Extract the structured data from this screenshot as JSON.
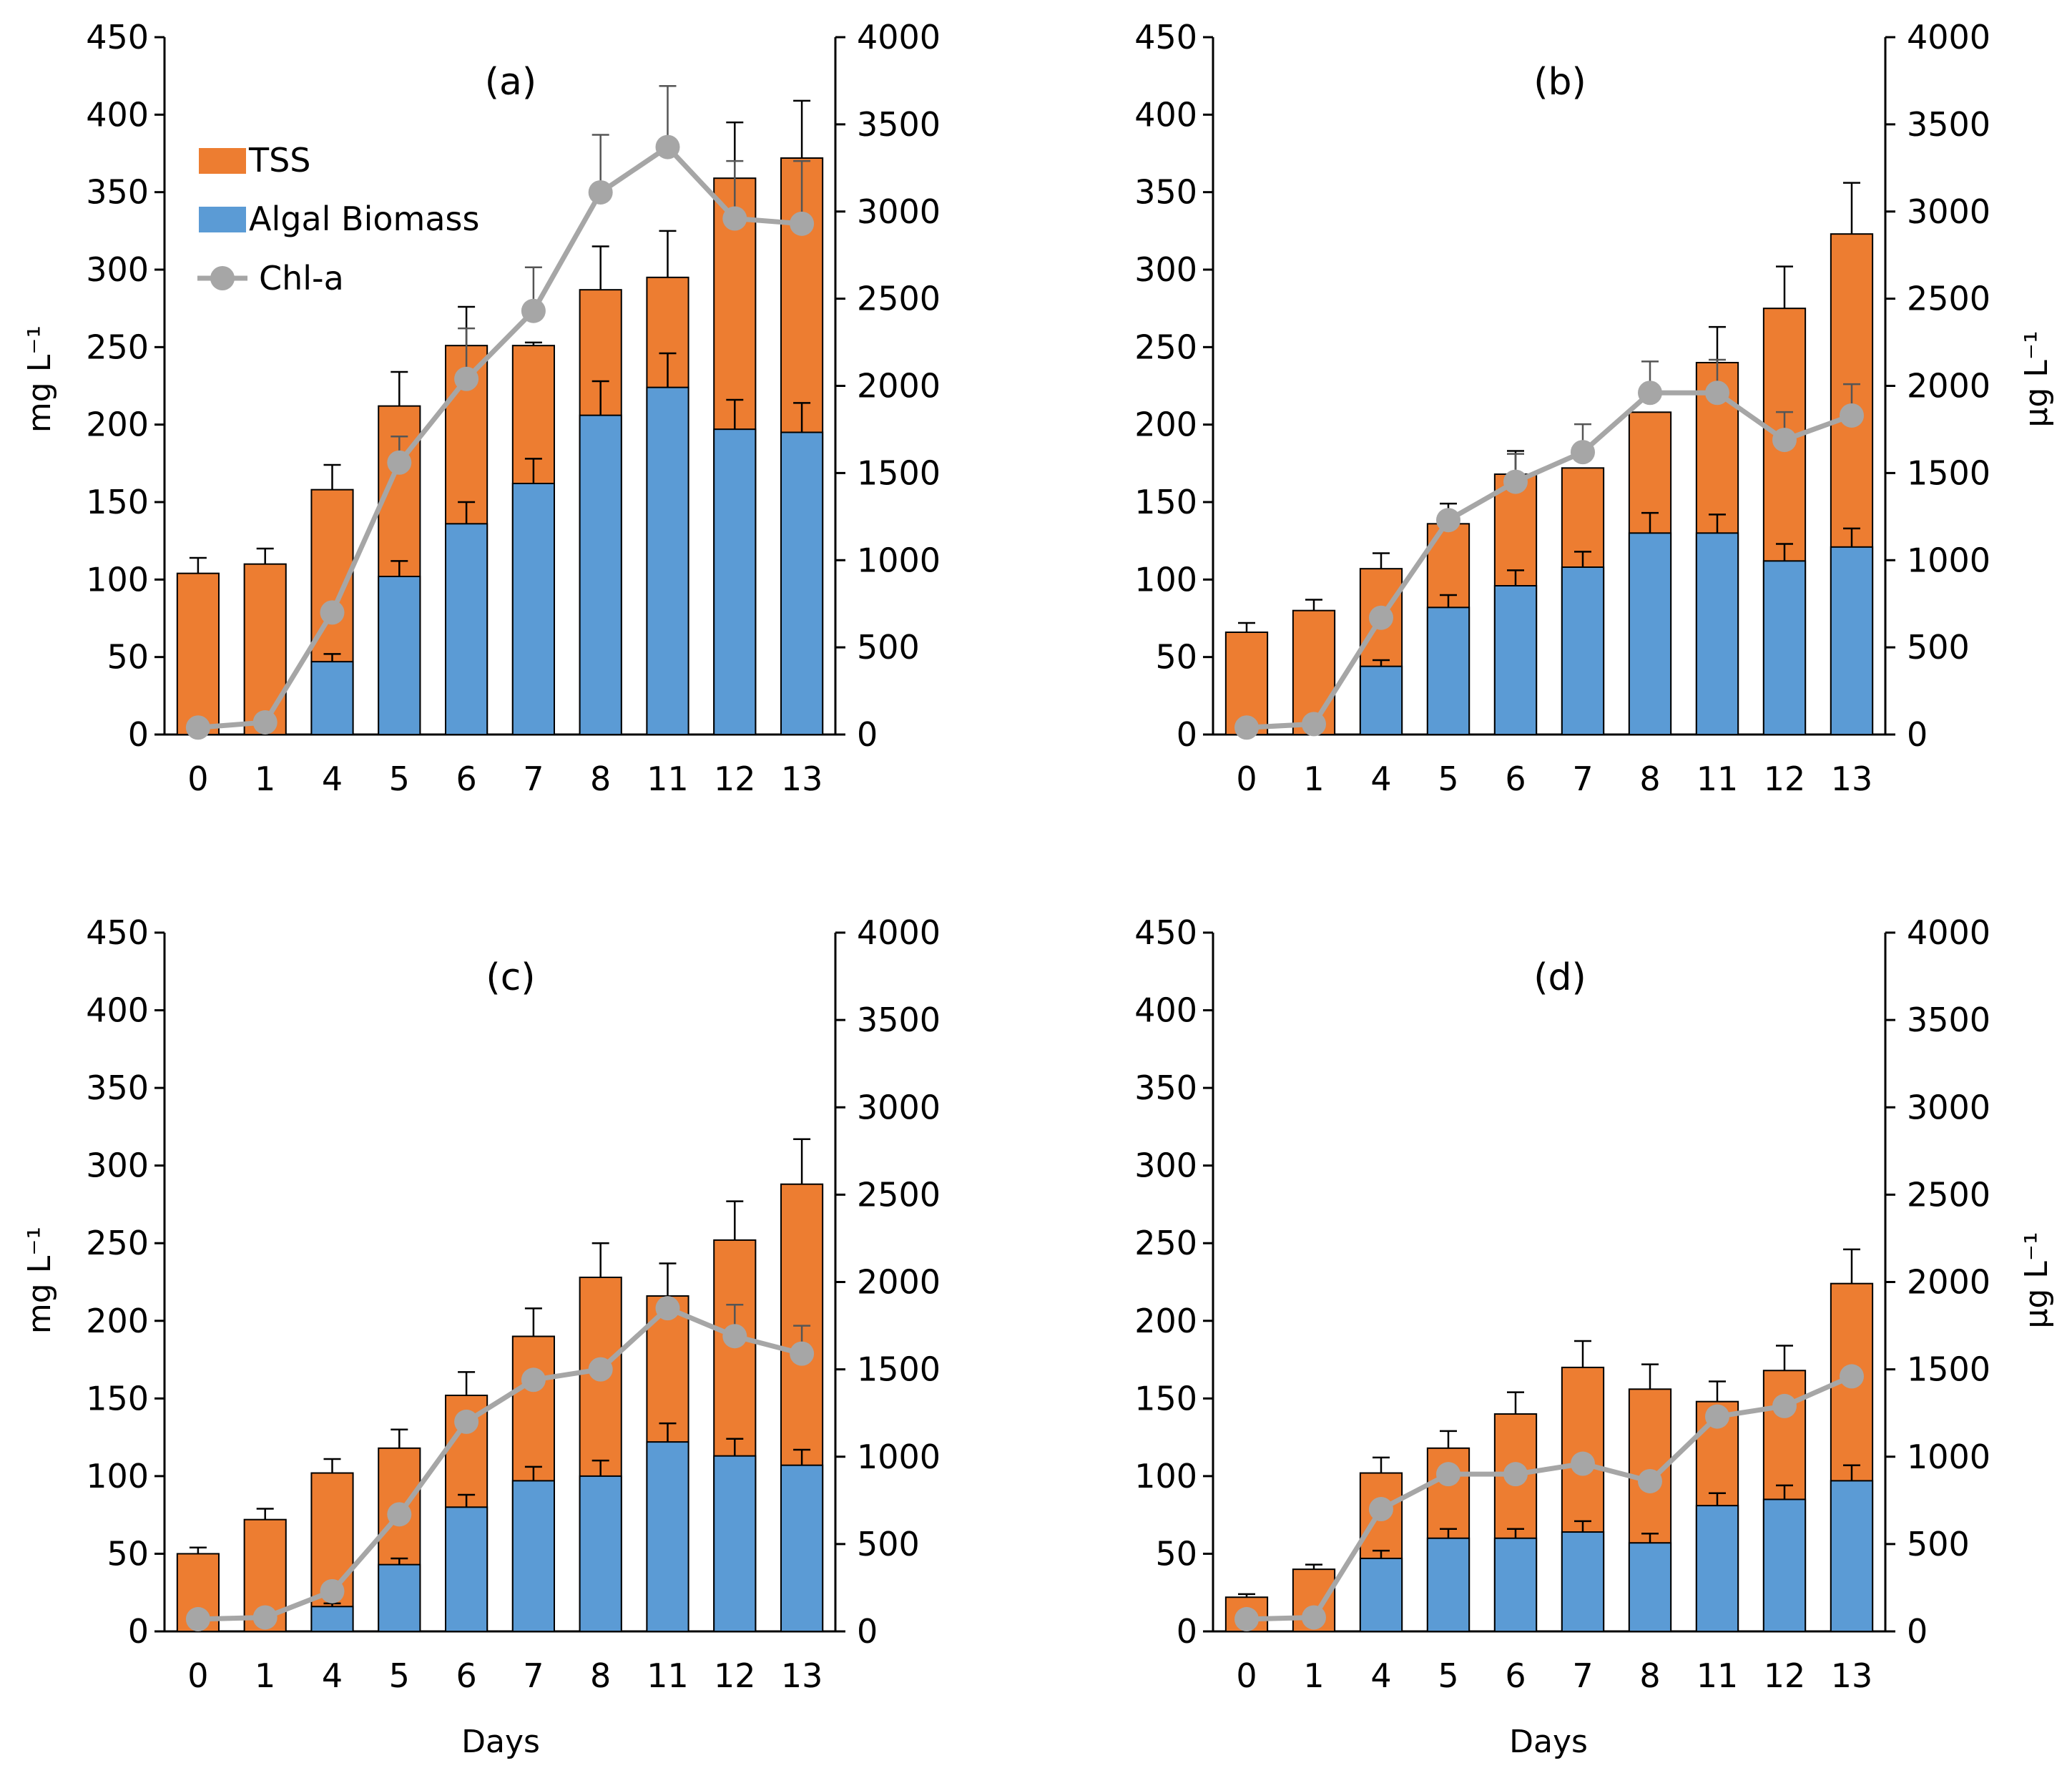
{
  "figure": {
    "y_left_label": "mg L⁻¹",
    "y_right_label": "µg L⁻¹",
    "x_label": "Days"
  },
  "colors": {
    "tss": "#ED7D31",
    "algal": "#5B9BD5",
    "chla": "#A6A6A6",
    "axis": "#000000"
  },
  "legend": {
    "tss": "TSS",
    "algal": "Algal Biomass",
    "chla": "Chl-a"
  },
  "chart_data": [
    {
      "type": "bar",
      "title": "(a)",
      "categories": [
        "0",
        "1",
        "4",
        "5",
        "6",
        "7",
        "8",
        "11",
        "12",
        "13"
      ],
      "ylim": [
        0,
        450
      ],
      "yticks": [
        0,
        50,
        100,
        150,
        200,
        250,
        300,
        350,
        400,
        450
      ],
      "y2lim": [
        0,
        4000
      ],
      "y2ticks": [
        0,
        500,
        1000,
        1500,
        2000,
        2500,
        3000,
        3500,
        4000
      ],
      "series": [
        {
          "name": "TSS",
          "values": [
            104,
            110,
            158,
            212,
            251,
            251,
            287,
            295,
            359,
            372
          ],
          "error": [
            10,
            10,
            16,
            22,
            25,
            2,
            28,
            30,
            36,
            37
          ]
        },
        {
          "name": "Algal Biomass",
          "values": [
            0,
            0,
            47,
            102,
            136,
            162,
            206,
            224,
            197,
            195
          ],
          "error": [
            0,
            0,
            5,
            10,
            14,
            16,
            22,
            22,
            19,
            19
          ]
        },
        {
          "name": "Chl-a",
          "axis": "right",
          "values": [
            40,
            70,
            700,
            1560,
            2040,
            2430,
            3110,
            3370,
            2960,
            2930
          ],
          "error": [
            0,
            0,
            0,
            150,
            290,
            250,
            330,
            350,
            330,
            360
          ]
        }
      ]
    },
    {
      "type": "bar",
      "title": "(b)",
      "categories": [
        "0",
        "1",
        "4",
        "5",
        "6",
        "7",
        "8",
        "11",
        "12",
        "13"
      ],
      "ylim": [
        0,
        450
      ],
      "yticks": [
        0,
        50,
        100,
        150,
        200,
        250,
        300,
        350,
        400,
        450
      ],
      "y2lim": [
        0,
        4000
      ],
      "y2ticks": [
        0,
        500,
        1000,
        1500,
        2000,
        2500,
        3000,
        3500,
        4000
      ],
      "series": [
        {
          "name": "TSS",
          "values": [
            66,
            80,
            107,
            136,
            168,
            172,
            208,
            240,
            275,
            323
          ],
          "error": [
            6,
            7,
            10,
            13,
            15,
            0,
            0,
            23,
            27,
            33
          ]
        },
        {
          "name": "Algal Biomass",
          "values": [
            0,
            0,
            44,
            82,
            96,
            108,
            130,
            130,
            112,
            121
          ],
          "error": [
            0,
            0,
            4,
            8,
            10,
            10,
            13,
            12,
            11,
            12
          ]
        },
        {
          "name": "Chl-a",
          "axis": "right",
          "values": [
            40,
            60,
            670,
            1230,
            1450,
            1620,
            1960,
            1960,
            1690,
            1830
          ],
          "error": [
            0,
            0,
            0,
            0,
            160,
            160,
            180,
            190,
            160,
            180
          ]
        }
      ]
    },
    {
      "type": "bar",
      "title": "(c)",
      "categories": [
        "0",
        "1",
        "4",
        "5",
        "6",
        "7",
        "8",
        "11",
        "12",
        "13"
      ],
      "ylim": [
        0,
        450
      ],
      "yticks": [
        0,
        50,
        100,
        150,
        200,
        250,
        300,
        350,
        400,
        450
      ],
      "y2lim": [
        0,
        4000
      ],
      "y2ticks": [
        0,
        500,
        1000,
        1500,
        2000,
        2500,
        3000,
        3500,
        4000
      ],
      "series": [
        {
          "name": "TSS",
          "values": [
            50,
            72,
            102,
            118,
            152,
            190,
            228,
            216,
            252,
            288
          ],
          "error": [
            4,
            7,
            9,
            12,
            15,
            18,
            22,
            21,
            25,
            29
          ]
        },
        {
          "name": "Algal Biomass",
          "values": [
            0,
            0,
            16,
            43,
            80,
            97,
            100,
            122,
            113,
            107
          ],
          "error": [
            0,
            0,
            2,
            4,
            8,
            9,
            10,
            12,
            11,
            10
          ]
        },
        {
          "name": "Chl-a",
          "axis": "right",
          "values": [
            70,
            80,
            230,
            670,
            1200,
            1440,
            1500,
            1850,
            1690,
            1590
          ],
          "error": [
            0,
            0,
            0,
            0,
            0,
            0,
            0,
            0,
            180,
            160
          ]
        }
      ]
    },
    {
      "type": "bar",
      "title": "(d)",
      "categories": [
        "0",
        "1",
        "4",
        "5",
        "6",
        "7",
        "8",
        "11",
        "12",
        "13"
      ],
      "ylim": [
        0,
        450
      ],
      "yticks": [
        0,
        50,
        100,
        150,
        200,
        250,
        300,
        350,
        400,
        450
      ],
      "y2lim": [
        0,
        4000
      ],
      "y2ticks": [
        0,
        500,
        1000,
        1500,
        2000,
        2500,
        3000,
        3500,
        4000
      ],
      "series": [
        {
          "name": "TSS",
          "values": [
            22,
            40,
            102,
            118,
            140,
            170,
            156,
            148,
            168,
            224
          ],
          "error": [
            2,
            3,
            10,
            11,
            14,
            17,
            16,
            13,
            16,
            22
          ]
        },
        {
          "name": "Algal Biomass",
          "values": [
            0,
            0,
            47,
            60,
            60,
            64,
            57,
            81,
            85,
            97
          ],
          "error": [
            0,
            0,
            5,
            6,
            6,
            7,
            6,
            8,
            9,
            10
          ]
        },
        {
          "name": "Chl-a",
          "axis": "right",
          "values": [
            70,
            80,
            700,
            900,
            900,
            960,
            860,
            1230,
            1290,
            1460
          ],
          "error": [
            0,
            0,
            0,
            0,
            0,
            0,
            0,
            0,
            0,
            0
          ]
        }
      ]
    }
  ]
}
